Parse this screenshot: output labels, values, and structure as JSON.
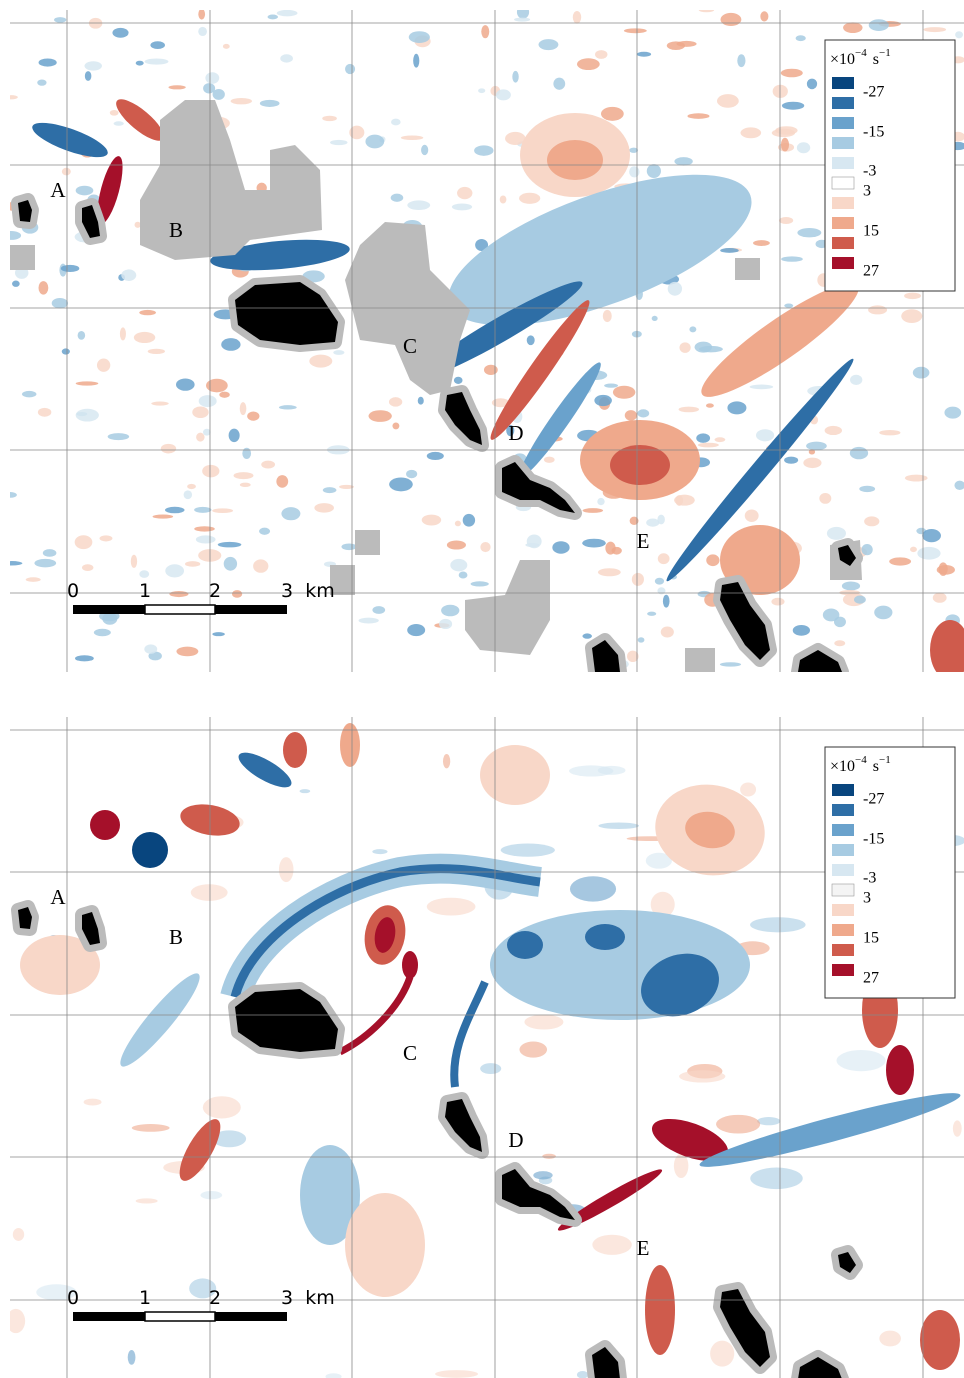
{
  "panels": [
    {
      "site_labels": [
        "A",
        "B",
        "C",
        "D",
        "E"
      ],
      "legend": {
        "unit": {
          "prefix": "×10",
          "exponent": "−4",
          "unit": "s",
          "unit_exponent": "−1"
        },
        "labels": [
          "-27",
          "-15",
          "-3",
          "3",
          "15",
          "27"
        ],
        "colors": [
          "#08457e",
          "#2e6ea6",
          "#6aa2cc",
          "#a7cbe2",
          "#d7e7f1",
          "#ffffff",
          "#f8d7c8",
          "#efa98c",
          "#cf5b4c",
          "#a5102a"
        ]
      },
      "scale_bar": {
        "ticks": [
          "0",
          "1",
          "2",
          "3"
        ],
        "unit": "km"
      }
    },
    {
      "site_labels": [
        "A",
        "B",
        "C",
        "D",
        "E"
      ],
      "legend": {
        "unit": {
          "prefix": "×10",
          "exponent": "−4",
          "unit": "s",
          "unit_exponent": "−1"
        },
        "labels": [
          "-27",
          "-15",
          "-3",
          "3",
          "15",
          "27"
        ],
        "colors": [
          "#08457e",
          "#2e6ea6",
          "#6aa2cc",
          "#a7cbe2",
          "#d7e7f1",
          "#f4f4f4",
          "#f8d7c8",
          "#efa98c",
          "#cf5b4c",
          "#a5102a"
        ]
      },
      "scale_bar": {
        "ticks": [
          "0",
          "1",
          "2",
          "3"
        ],
        "unit": "km"
      }
    }
  ]
}
